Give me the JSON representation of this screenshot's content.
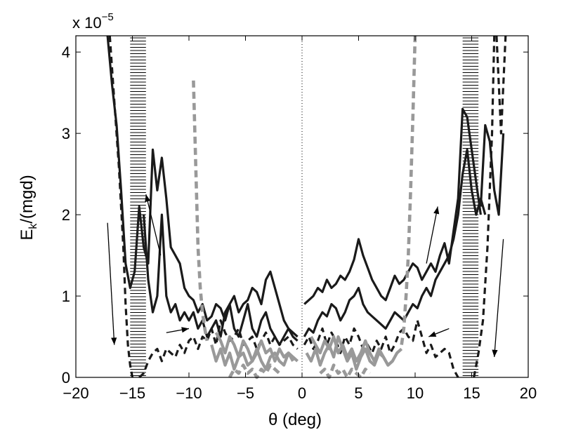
{
  "chart_data": {
    "type": "line",
    "xlabel": "θ (deg)",
    "ylabel_main": "E",
    "ylabel_sub": "k",
    "ylabel_rest": "/(mgd)",
    "y_multiplier_base": "x 10",
    "y_multiplier_exp": "−5",
    "xlim": [
      -20,
      20
    ],
    "ylim": [
      0,
      4.2
    ],
    "x_ticks": [
      -20,
      -15,
      -10,
      -5,
      0,
      5,
      10,
      15,
      20
    ],
    "x_tick_labels": [
      "−20",
      "−15",
      "−10",
      "−5",
      "0",
      "5",
      "10",
      "15",
      "20"
    ],
    "y_ticks": [
      0,
      1,
      2,
      3,
      4
    ],
    "y_tick_labels": [
      "0",
      "1",
      "2",
      "3",
      "4"
    ],
    "grid": false,
    "colors": {
      "dark": "#1a1a1a",
      "gray": "#999999",
      "hatch": "#000000"
    },
    "hatched_bands": [
      {
        "x0": -15.2,
        "x1": -13.8
      },
      {
        "x0": 14.2,
        "x1": 15.6
      }
    ],
    "vertical_reference_x": 0,
    "series": [
      {
        "style": "solid-dark",
        "x": [
          -17.2,
          -16.8,
          -16.4,
          -16.0,
          -15.6,
          -15.2,
          -14.8,
          -14.4,
          -14.0,
          -13.6,
          -13.2,
          -12.8,
          -12.4,
          -12.0,
          -11.6,
          -11.2,
          -10.8,
          -10.4,
          -10.0,
          -9.6,
          -9.2,
          -8.8,
          -8.4,
          -8.0,
          -7.6,
          -7.2,
          -6.8,
          -6.4,
          -6.0,
          -5.6,
          -5.2,
          -4.8,
          -4.4,
          -4.0,
          -3.6,
          -3.2,
          -2.8,
          -2.4,
          -2.0,
          -1.6,
          -1.2,
          -0.8,
          -0.4
        ],
        "y": [
          4.2,
          3.6,
          3.1,
          2.3,
          1.4,
          1.1,
          1.3,
          2.1,
          1.6,
          1.4,
          2.8,
          2.3,
          2.7,
          2.2,
          1.6,
          1.5,
          1.4,
          1.1,
          1.0,
          0.95,
          0.8,
          0.9,
          0.7,
          0.75,
          0.9,
          0.85,
          0.7,
          0.9,
          1.0,
          0.8,
          0.9,
          0.95,
          1.1,
          1.05,
          0.9,
          1.2,
          1.3,
          1.1,
          0.9,
          0.7,
          0.6,
          0.55,
          0.5
        ]
      },
      {
        "style": "solid-dark",
        "x": [
          -14.0,
          -13.6,
          -13.2,
          -12.8,
          -12.4,
          -12.0,
          -11.6,
          -11.2,
          -10.8,
          -10.4,
          -10.0,
          -9.6,
          -9.2,
          -8.8,
          -8.4,
          -8.0,
          -7.6,
          -7.2,
          -6.8,
          -6.4,
          -6.0,
          -5.6,
          -5.2,
          -4.8,
          -4.4,
          -4.0,
          -3.6,
          -3.2,
          -2.8,
          -2.4,
          -2.0,
          -1.6,
          -1.2,
          -0.8,
          -0.4
        ],
        "y": [
          2.0,
          1.2,
          0.8,
          1.0,
          2.0,
          1.0,
          0.8,
          0.9,
          0.7,
          0.8,
          0.7,
          0.8,
          0.6,
          0.7,
          0.5,
          0.6,
          0.7,
          0.5,
          0.8,
          0.9,
          0.6,
          0.5,
          0.7,
          0.9,
          0.6,
          0.5,
          0.7,
          0.8,
          0.6,
          0.5,
          0.4,
          0.5,
          0.6,
          0.5,
          0.45
        ]
      },
      {
        "style": "dashed-dark",
        "x": [
          -17.0,
          -16.6,
          -16.2,
          -15.8,
          -15.6,
          -15.4,
          -15.2,
          -15.0
        ],
        "y": [
          4.2,
          3.4,
          2.6,
          1.6,
          0.9,
          0.4,
          0.15,
          0.0
        ]
      },
      {
        "style": "dashed-dark",
        "x": [
          -14.4,
          -14.0,
          -13.6,
          -13.2,
          -12.8,
          -12.4,
          -12.0,
          -11.6,
          -11.2,
          -10.8,
          -10.4,
          -10.0,
          -9.6,
          -9.2,
          -8.8,
          -8.4,
          -8.0,
          -7.6,
          -7.2,
          -6.8,
          -6.4,
          -6.0,
          -5.6,
          -5.2,
          -4.8,
          -4.4,
          -4.0,
          -3.6,
          -3.2,
          -2.8,
          -2.4,
          -2.0,
          -1.6,
          -1.2,
          -0.8,
          -0.4
        ],
        "y": [
          0.0,
          0.05,
          0.2,
          0.3,
          0.35,
          0.2,
          0.35,
          0.3,
          0.25,
          0.4,
          0.3,
          0.45,
          0.5,
          0.35,
          0.5,
          0.45,
          0.6,
          0.4,
          0.7,
          0.55,
          0.45,
          0.5,
          0.6,
          0.4,
          0.45,
          0.5,
          0.35,
          0.45,
          0.55,
          0.4,
          0.5,
          0.4,
          0.45,
          0.5,
          0.4,
          0.35
        ]
      },
      {
        "style": "dashed-gray",
        "x": [
          -9.6,
          -9.4,
          -9.2,
          -9.0,
          -8.8,
          -8.6,
          -8.4
        ],
        "y": [
          3.65,
          2.6,
          1.6,
          1.1,
          0.8,
          0.6,
          0.45
        ]
      },
      {
        "style": "solid-gray",
        "x": [
          -8.0,
          -7.6,
          -7.2,
          -6.8,
          -6.4,
          -6.0,
          -5.6,
          -5.2,
          -4.8,
          -4.4,
          -4.0,
          -3.6,
          -3.2,
          -2.8,
          -2.4,
          -2.0,
          -1.6,
          -1.2,
          -0.8,
          -0.4
        ],
        "y": [
          0.4,
          0.2,
          0.35,
          0.15,
          0.3,
          0.1,
          0.25,
          0.3,
          0.15,
          0.2,
          0.35,
          0.2,
          0.1,
          0.25,
          0.3,
          0.2,
          0.15,
          0.3,
          0.25,
          0.2
        ]
      },
      {
        "style": "solid-gray",
        "x": [
          -7.6,
          -7.2,
          -6.8,
          -6.4,
          -6.0,
          -5.6,
          -5.2,
          -4.8,
          -4.4,
          -4.0,
          -3.6,
          -3.2,
          -2.8,
          -2.4,
          -2.0,
          -1.6,
          -1.2,
          -0.8
        ],
        "y": [
          0.55,
          0.45,
          0.3,
          0.5,
          0.4,
          0.25,
          0.45,
          0.35,
          0.2,
          0.3,
          0.45,
          0.3,
          0.35,
          0.2,
          0.35,
          0.25,
          0.3,
          0.2
        ]
      },
      {
        "style": "dashed-gray",
        "x": [
          -6.4,
          -6.0,
          -5.6,
          -5.2,
          -4.8,
          -4.4,
          -4.0,
          -3.6,
          -3.2,
          -2.8,
          -2.4,
          -2.0
        ],
        "y": [
          0.0,
          0.1,
          0.05,
          0.15,
          0.05,
          0.1,
          0.0,
          0.1,
          0.05,
          0.15,
          0.1,
          0.05
        ]
      },
      {
        "style": "solid-dark",
        "x": [
          0.2,
          0.6,
          1.0,
          1.4,
          1.8,
          2.2,
          2.6,
          3.0,
          3.4,
          3.8,
          4.2,
          4.6,
          5.0,
          5.4,
          5.8,
          6.2,
          6.6,
          7.0,
          7.4,
          7.8,
          8.2,
          8.6,
          9.0,
          9.4,
          9.8,
          10.2,
          10.6,
          11.0,
          11.4,
          11.8,
          12.2,
          12.6,
          13.0,
          13.4,
          13.8,
          14.2,
          14.6,
          15.0,
          15.4,
          15.8
        ],
        "y": [
          0.9,
          0.95,
          1.0,
          1.1,
          1.05,
          1.2,
          1.1,
          1.15,
          1.25,
          1.2,
          1.3,
          1.45,
          1.7,
          1.5,
          1.35,
          1.2,
          1.1,
          1.0,
          0.95,
          1.1,
          1.25,
          1.15,
          1.2,
          1.3,
          1.4,
          1.35,
          1.2,
          1.3,
          1.4,
          1.3,
          1.5,
          1.65,
          1.4,
          1.8,
          2.2,
          3.3,
          3.2,
          2.8,
          2.4,
          2.0
        ]
      },
      {
        "style": "solid-dark",
        "x": [
          0.2,
          0.6,
          1.0,
          1.4,
          1.8,
          2.2,
          2.6,
          3.0,
          3.4,
          3.8,
          4.2,
          4.6,
          5.0,
          5.4,
          5.8,
          6.2,
          6.6,
          7.0,
          7.4,
          7.8,
          8.2,
          8.6,
          9.0,
          9.4,
          9.8,
          10.2,
          10.6,
          11.0,
          11.4,
          11.8,
          12.2,
          12.6,
          13.0,
          13.4,
          13.8,
          14.2,
          14.6,
          15.0,
          15.4,
          15.8,
          16.2
        ],
        "y": [
          0.5,
          0.6,
          0.55,
          0.7,
          0.8,
          0.75,
          0.9,
          0.85,
          0.7,
          0.8,
          0.95,
          1.0,
          1.1,
          0.9,
          0.8,
          0.75,
          0.7,
          0.65,
          0.6,
          0.7,
          0.8,
          0.75,
          0.7,
          0.8,
          0.9,
          0.85,
          1.0,
          1.1,
          1.0,
          1.2,
          1.3,
          1.4,
          1.5,
          1.7,
          2.0,
          2.5,
          2.8,
          2.3,
          2.0,
          2.2,
          2.0
        ]
      },
      {
        "style": "solid-dark",
        "x": [
          15.8,
          16.2,
          16.6,
          17.0,
          17.4,
          17.8
        ],
        "y": [
          2.1,
          3.1,
          2.9,
          2.3,
          2.0,
          3.0
        ]
      },
      {
        "style": "dashed-dark",
        "x": [
          0.2,
          0.6,
          1.0,
          1.4,
          1.8,
          2.2,
          2.6,
          3.0,
          3.4,
          3.8,
          4.2,
          4.6,
          5.0,
          5.4,
          5.8,
          6.2,
          6.6,
          7.0,
          7.4,
          7.8,
          8.2,
          8.6,
          9.0,
          9.4,
          9.8,
          10.2,
          10.6,
          11.0,
          11.4,
          11.8,
          12.2,
          12.6,
          13.0,
          13.4,
          13.8
        ],
        "y": [
          0.4,
          0.5,
          0.35,
          0.45,
          0.6,
          0.4,
          0.55,
          0.45,
          0.3,
          0.5,
          0.4,
          0.6,
          0.5,
          0.35,
          0.4,
          0.3,
          0.45,
          0.35,
          0.5,
          0.3,
          0.4,
          0.55,
          0.6,
          0.5,
          0.45,
          0.7,
          0.5,
          0.3,
          0.4,
          0.25,
          0.3,
          0.35,
          0.3,
          0.1,
          0.0
        ]
      },
      {
        "style": "dashed-dark",
        "x": [
          15.2,
          15.6,
          16.0,
          16.4,
          16.8,
          17.0
        ],
        "y": [
          0.0,
          0.3,
          0.7,
          1.6,
          3.0,
          4.2
        ]
      },
      {
        "style": "dashed-gray",
        "x": [
          8.8,
          9.0,
          9.2,
          9.4,
          9.6,
          9.8,
          10.0
        ],
        "y": [
          0.4,
          0.6,
          1.0,
          1.5,
          2.3,
          3.2,
          4.2
        ]
      },
      {
        "style": "solid-gray",
        "x": [
          0.4,
          0.8,
          1.2,
          1.6,
          2.0,
          2.4,
          2.8,
          3.2,
          3.6,
          4.0,
          4.4,
          4.8,
          5.2,
          5.6,
          6.0,
          6.4,
          6.8,
          7.2,
          7.6,
          8.0,
          8.4,
          8.8
        ],
        "y": [
          0.3,
          0.2,
          0.35,
          0.15,
          0.3,
          0.4,
          0.25,
          0.5,
          0.35,
          0.2,
          0.3,
          0.1,
          0.25,
          0.35,
          0.2,
          0.15,
          0.3,
          0.25,
          0.15,
          0.2,
          0.3,
          0.35
        ]
      },
      {
        "style": "solid-gray",
        "x": [
          0.8,
          1.2,
          1.6,
          2.0,
          2.4,
          2.8,
          3.2,
          3.6,
          4.0,
          4.4,
          4.8,
          5.2,
          5.6,
          6.0,
          6.4,
          6.8,
          7.2,
          7.6,
          8.0
        ],
        "y": [
          0.5,
          0.4,
          0.3,
          0.45,
          0.35,
          0.5,
          0.3,
          0.4,
          0.25,
          0.35,
          0.2,
          0.3,
          0.45,
          0.3,
          0.2,
          0.35,
          0.25,
          0.15,
          0.2
        ]
      },
      {
        "style": "dashed-gray",
        "x": [
          1.6,
          2.0,
          2.4,
          2.8,
          3.2,
          3.6,
          4.0,
          4.4,
          4.8,
          5.2,
          5.6,
          6.0
        ],
        "y": [
          0.05,
          0.1,
          0.0,
          0.15,
          0.05,
          0.1,
          0.0,
          0.1,
          0.05,
          0.0,
          0.1,
          0.05
        ]
      },
      {
        "style": "dashed-dark",
        "x": [
          17.2,
          17.6,
          18.0
        ],
        "y": [
          4.2,
          3.0,
          4.2
        ]
      }
    ],
    "annotation_arrows": [
      {
        "from": [
          -12.5,
          1.5
        ],
        "to": [
          -13.8,
          2.25
        ]
      },
      {
        "from": [
          -17.2,
          1.9
        ],
        "to": [
          -16.6,
          0.4
        ]
      },
      {
        "from": [
          -12.0,
          0.55
        ],
        "to": [
          -10.0,
          0.6
        ]
      },
      {
        "from": [
          11.0,
          1.4
        ],
        "to": [
          12.0,
          2.1
        ]
      },
      {
        "from": [
          13.0,
          0.6
        ],
        "to": [
          11.2,
          0.5
        ]
      },
      {
        "from": [
          17.8,
          1.7
        ],
        "to": [
          17.0,
          0.25
        ]
      }
    ]
  }
}
